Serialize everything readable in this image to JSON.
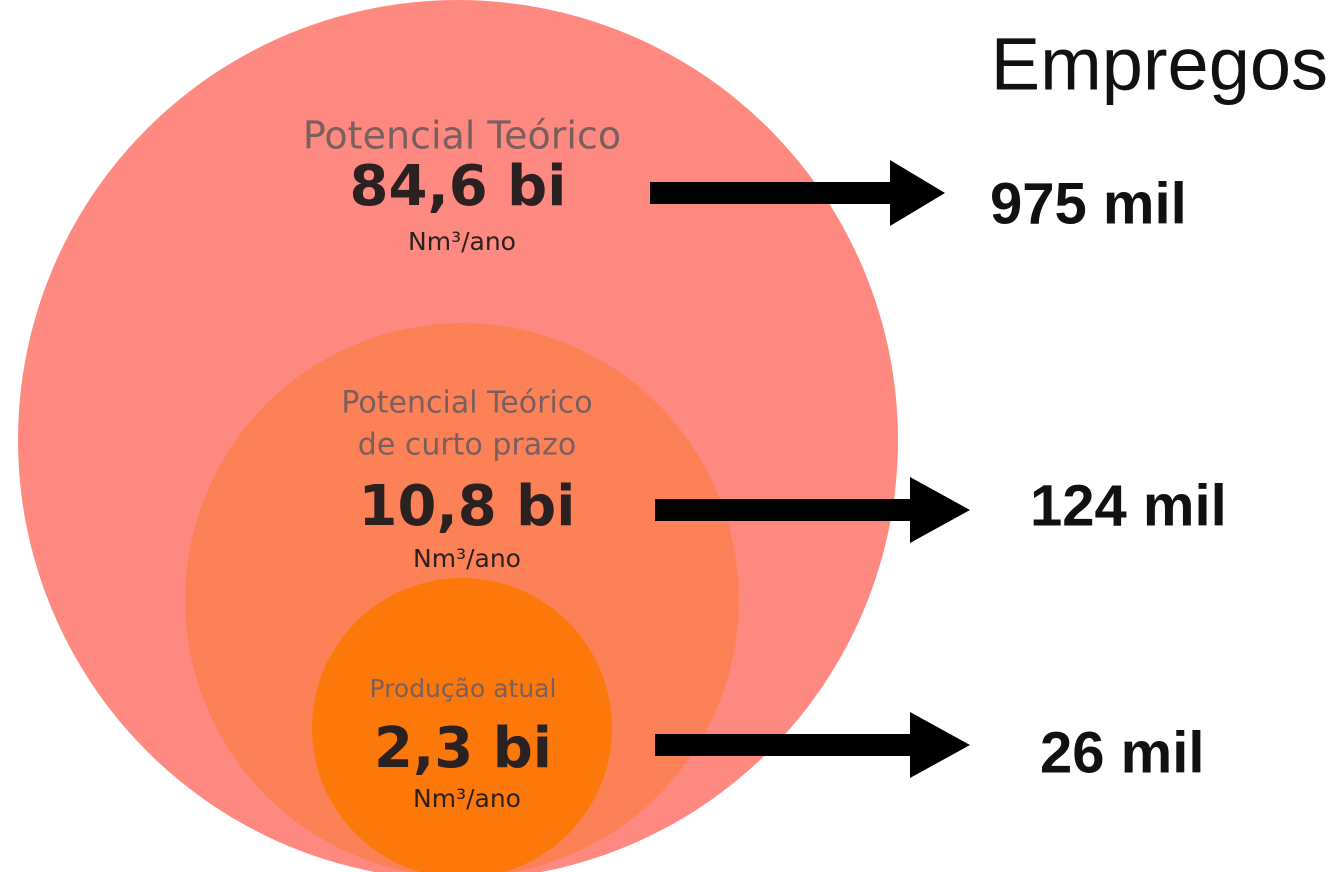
{
  "title": "Empregos",
  "levels": [
    {
      "label": [
        "Potencial Teórico"
      ],
      "value": "84,6 bi",
      "unit": "Nm³/ano",
      "jobs": "975 mil"
    },
    {
      "label": [
        "Potencial Teórico",
        "de curto prazo"
      ],
      "value": "10,8 bi",
      "unit": "Nm³/ano",
      "jobs": "124 mil"
    },
    {
      "label": [
        "Produção atual"
      ],
      "value": "2,3 bi",
      "unit": "Nm³/ano",
      "jobs": "26 mil"
    }
  ]
}
